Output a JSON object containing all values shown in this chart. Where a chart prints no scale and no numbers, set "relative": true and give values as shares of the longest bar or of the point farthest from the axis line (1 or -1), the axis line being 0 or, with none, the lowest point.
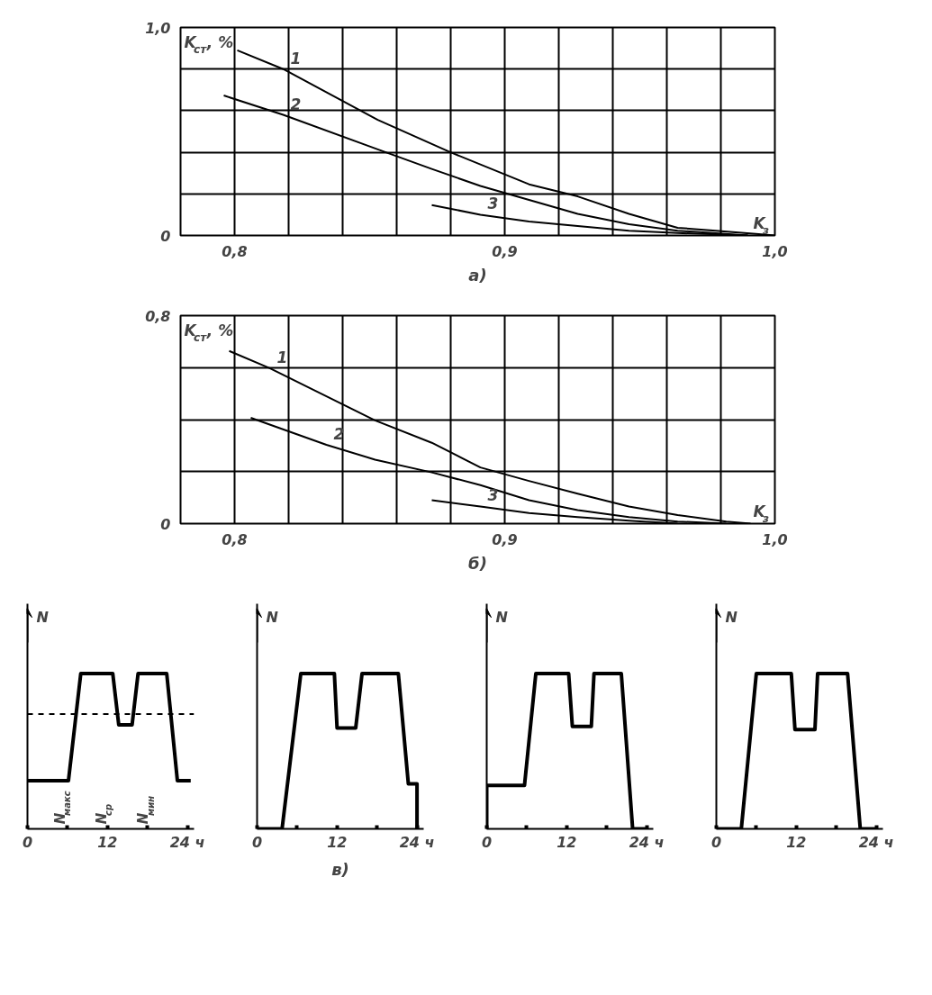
{
  "chart_data": [
    {
      "type": "line",
      "ylabel": "K$_{ст}$, %",
      "xlabel": "K$_{з}$",
      "xlim": [
        0.78,
        1.0
      ],
      "xticks": [
        {
          "value": 0.78,
          "label": null
        },
        {
          "value": 0.8,
          "label": "0,8"
        },
        {
          "value": 0.82,
          "label": null
        },
        {
          "value": 0.84,
          "label": null
        },
        {
          "value": 0.86,
          "label": null
        },
        {
          "value": 0.88,
          "label": null
        },
        {
          "value": 0.9,
          "label": "0,9"
        },
        {
          "value": 0.92,
          "label": null
        },
        {
          "value": 0.94,
          "label": null
        },
        {
          "value": 0.96,
          "label": null
        },
        {
          "value": 0.98,
          "label": null
        },
        {
          "value": 1.0,
          "label": "1,0"
        }
      ],
      "ylim": [
        0,
        1.0
      ],
      "yticks": [
        0,
        {
          "value": 0.2,
          "label": null
        },
        {
          "value": 0.4,
          "label": null
        },
        {
          "value": 0.6,
          "label": null
        },
        {
          "value": 0.8,
          "label": null
        },
        {
          "value": 1.0,
          "label": "1,0"
        }
      ],
      "grid": true,
      "title": "а)",
      "series": [
        {
          "name": "1",
          "color": "#000000",
          "x": [
            0.801,
            0.818,
            0.853,
            0.879,
            0.909,
            0.927,
            0.946,
            0.964,
            0.994,
            1.0
          ],
          "values": [
            0.89,
            0.8,
            0.556,
            0.405,
            0.246,
            0.188,
            0.104,
            0.037,
            0.007,
            0.0
          ]
        },
        {
          "name": "2",
          "color": "#000000",
          "x": [
            0.796,
            0.818,
            0.853,
            0.873,
            0.891,
            0.909,
            0.927,
            0.946,
            0.964,
            0.99
          ],
          "values": [
            0.673,
            0.58,
            0.414,
            0.32,
            0.238,
            0.171,
            0.104,
            0.054,
            0.023,
            0.0
          ]
        },
        {
          "name": "3",
          "color": "#000000",
          "x": [
            0.873,
            0.891,
            0.909,
            0.927,
            0.946,
            0.964,
            0.99
          ],
          "values": [
            0.146,
            0.1,
            0.067,
            0.045,
            0.023,
            0.012,
            0.0
          ]
        }
      ]
    },
    {
      "type": "line",
      "ylabel": "K$_{ст}$, %",
      "xlabel": "K$_{з}$",
      "xlim": [
        0.78,
        1.0
      ],
      "xticks": [
        {
          "value": 0.78,
          "label": null
        },
        {
          "value": 0.8,
          "label": "0,8"
        },
        {
          "value": 0.82,
          "label": null
        },
        {
          "value": 0.84,
          "label": null
        },
        {
          "value": 0.86,
          "label": null
        },
        {
          "value": 0.88,
          "label": null
        },
        {
          "value": 0.9,
          "label": "0,9"
        },
        {
          "value": 0.92,
          "label": null
        },
        {
          "value": 0.94,
          "label": null
        },
        {
          "value": 0.96,
          "label": null
        },
        {
          "value": 0.98,
          "label": null
        },
        {
          "value": 1.0,
          "label": "1,0"
        }
      ],
      "ylim": [
        0,
        0.8
      ],
      "yticks": [
        0,
        {
          "value": 0.2,
          "label": null
        },
        {
          "value": 0.4,
          "label": null
        },
        {
          "value": 0.6,
          "label": null
        },
        {
          "value": 0.8,
          "label": "0,8"
        }
      ],
      "grid": true,
      "title": "б)",
      "series": [
        {
          "name": "1",
          "color": "#000000",
          "x": [
            0.798,
            0.813,
            0.852,
            0.873,
            0.891,
            0.909,
            0.927,
            0.946,
            0.964,
            0.982,
            0.991
          ],
          "values": [
            0.664,
            0.598,
            0.397,
            0.311,
            0.216,
            0.164,
            0.115,
            0.066,
            0.033,
            0.008,
            0.0
          ]
        },
        {
          "name": "2",
          "color": "#000000",
          "x": [
            0.806,
            0.834,
            0.852,
            0.873,
            0.891,
            0.909,
            0.927,
            0.946,
            0.964,
            0.982
          ],
          "values": [
            0.407,
            0.303,
            0.246,
            0.197,
            0.148,
            0.09,
            0.052,
            0.025,
            0.008,
            0.0
          ]
        },
        {
          "name": "3",
          "color": "#000000",
          "x": [
            0.873,
            0.891,
            0.909,
            0.927,
            0.946,
            0.964
          ],
          "values": [
            0.09,
            0.066,
            0.041,
            0.025,
            0.011,
            0.0
          ]
        }
      ]
    },
    {
      "type": "line",
      "relative": true,
      "ylabel": "N",
      "xlim": [
        0,
        25
      ],
      "xticks": [
        0,
        {
          "value": 6,
          "label": null
        },
        12,
        {
          "value": 18,
          "label": null
        },
        {
          "value": 24,
          "label": "24 ч"
        }
      ],
      "ref_lines": [
        {
          "axis": "y",
          "value": 0.74,
          "color": "#000000",
          "line_style": "dashed"
        }
      ],
      "annotations": [
        "N$_{макс}$",
        "N$_{ср}$",
        "N$_{мин}$"
      ],
      "series": [
        {
          "color": "#000000",
          "x": [
            0,
            6.15,
            8.0,
            12.8,
            13.7,
            15.7,
            16.6,
            20.9,
            22.5,
            24.5
          ],
          "values": [
            0.31,
            0.31,
            1.0,
            1.0,
            0.67,
            0.67,
            1.0,
            1.0,
            0.31,
            0.31
          ]
        }
      ]
    },
    {
      "type": "line",
      "relative": true,
      "ylabel": "N",
      "xlim": [
        0,
        25
      ],
      "xticks": [
        0,
        {
          "value": 6,
          "label": null
        },
        12,
        {
          "value": 18,
          "label": null
        },
        {
          "value": 24,
          "label": "24 ч"
        }
      ],
      "title": "в)",
      "series": [
        {
          "color": "#000000",
          "x": [
            0,
            3.75,
            6.56,
            11.6,
            12.0,
            14.8,
            15.75,
            21.2,
            22.7,
            24,
            24
          ],
          "values": [
            0.0,
            0.0,
            1.0,
            1.0,
            0.65,
            0.65,
            1.0,
            1.0,
            0.29,
            0.29,
            0.0
          ]
        }
      ]
    },
    {
      "type": "line",
      "relative": true,
      "ylabel": "N",
      "xlim": [
        0,
        25
      ],
      "xticks": [
        0,
        {
          "value": 6,
          "label": null
        },
        12,
        {
          "value": 18,
          "label": null
        },
        {
          "value": 24,
          "label": "24 ч"
        }
      ],
      "series": [
        {
          "color": "#000000",
          "x": [
            0,
            0,
            5.67,
            7.37,
            12.3,
            12.85,
            15.7,
            16.1,
            20.2,
            21.9,
            24
          ],
          "values": [
            0.0,
            0.28,
            0.28,
            1.0,
            1.0,
            0.66,
            0.66,
            1.0,
            1.0,
            0.0,
            0.0
          ]
        }
      ]
    },
    {
      "type": "line",
      "relative": true,
      "ylabel": "N",
      "xlim": [
        0,
        25
      ],
      "xticks": [
        0,
        {
          "value": 6,
          "label": null
        },
        12,
        {
          "value": 18,
          "label": null
        },
        {
          "value": 24,
          "label": "24 ч"
        }
      ],
      "series": [
        {
          "color": "#000000",
          "x": [
            0,
            3.75,
            6.0,
            11.25,
            11.8,
            14.8,
            15.2,
            19.7,
            21.6,
            24
          ],
          "values": [
            0.0,
            0.0,
            1.0,
            1.0,
            0.64,
            0.64,
            1.0,
            1.0,
            0.0,
            0.0
          ]
        }
      ]
    }
  ]
}
